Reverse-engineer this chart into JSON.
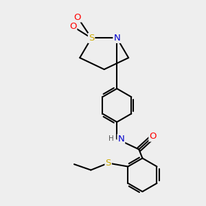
{
  "bg_color": "#eeeeee",
  "atom_colors": {
    "C": "#000000",
    "N": "#0000cc",
    "O": "#ff0000",
    "S": "#ccaa00",
    "H": "#555555"
  },
  "bond_color": "#000000",
  "bond_width": 1.5,
  "font_size": 8.5
}
